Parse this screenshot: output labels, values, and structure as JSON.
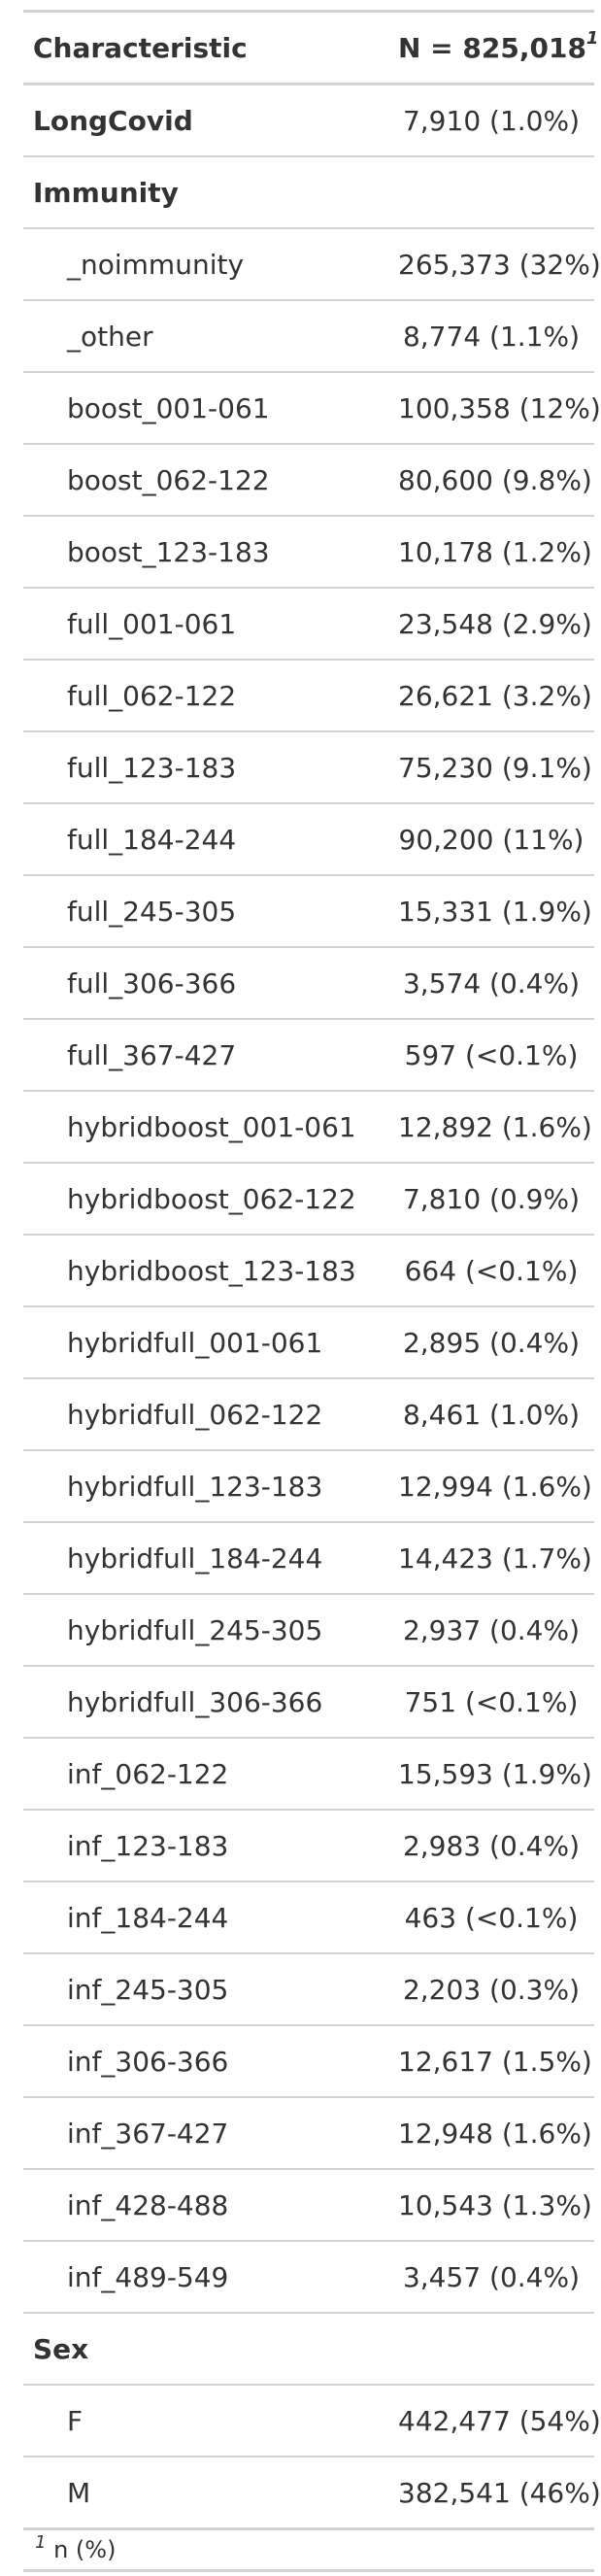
{
  "table": {
    "header": {
      "characteristic": "Characteristic",
      "n_label": "N = 825,018",
      "footnote_mark": "1"
    },
    "rows": [
      {
        "label": "LongCovid",
        "value": "7,910 (1.0%)",
        "type": "var"
      },
      {
        "label": "Immunity",
        "value": "",
        "type": "var"
      },
      {
        "label": "_noimmunity",
        "value": "265,373 (32%)",
        "type": "level"
      },
      {
        "label": "_other",
        "value": "8,774 (1.1%)",
        "type": "level"
      },
      {
        "label": "boost_001-061",
        "value": "100,358 (12%)",
        "type": "level"
      },
      {
        "label": "boost_062-122",
        "value": "80,600 (9.8%)",
        "type": "level"
      },
      {
        "label": "boost_123-183",
        "value": "10,178 (1.2%)",
        "type": "level"
      },
      {
        "label": "full_001-061",
        "value": "23,548 (2.9%)",
        "type": "level"
      },
      {
        "label": "full_062-122",
        "value": "26,621 (3.2%)",
        "type": "level"
      },
      {
        "label": "full_123-183",
        "value": "75,230 (9.1%)",
        "type": "level"
      },
      {
        "label": "full_184-244",
        "value": "90,200 (11%)",
        "type": "level"
      },
      {
        "label": "full_245-305",
        "value": "15,331 (1.9%)",
        "type": "level"
      },
      {
        "label": "full_306-366",
        "value": "3,574 (0.4%)",
        "type": "level"
      },
      {
        "label": "full_367-427",
        "value": "597 (<0.1%)",
        "type": "level"
      },
      {
        "label": "hybridboost_001-061",
        "value": "12,892 (1.6%)",
        "type": "level"
      },
      {
        "label": "hybridboost_062-122",
        "value": "7,810 (0.9%)",
        "type": "level"
      },
      {
        "label": "hybridboost_123-183",
        "value": "664 (<0.1%)",
        "type": "level"
      },
      {
        "label": "hybridfull_001-061",
        "value": "2,895 (0.4%)",
        "type": "level"
      },
      {
        "label": "hybridfull_062-122",
        "value": "8,461 (1.0%)",
        "type": "level"
      },
      {
        "label": "hybridfull_123-183",
        "value": "12,994 (1.6%)",
        "type": "level"
      },
      {
        "label": "hybridfull_184-244",
        "value": "14,423 (1.7%)",
        "type": "level"
      },
      {
        "label": "hybridfull_245-305",
        "value": "2,937 (0.4%)",
        "type": "level"
      },
      {
        "label": "hybridfull_306-366",
        "value": "751 (<0.1%)",
        "type": "level"
      },
      {
        "label": "inf_062-122",
        "value": "15,593 (1.9%)",
        "type": "level"
      },
      {
        "label": "inf_123-183",
        "value": "2,983 (0.4%)",
        "type": "level"
      },
      {
        "label": "inf_184-244",
        "value": "463 (<0.1%)",
        "type": "level"
      },
      {
        "label": "inf_245-305",
        "value": "2,203 (0.3%)",
        "type": "level"
      },
      {
        "label": "inf_306-366",
        "value": "12,617 (1.5%)",
        "type": "level"
      },
      {
        "label": "inf_367-427",
        "value": "12,948 (1.6%)",
        "type": "level"
      },
      {
        "label": "inf_428-488",
        "value": "10,543 (1.3%)",
        "type": "level"
      },
      {
        "label": "inf_489-549",
        "value": "3,457 (0.4%)",
        "type": "level"
      },
      {
        "label": "Sex",
        "value": "",
        "type": "var"
      },
      {
        "label": "F",
        "value": "442,477 (54%)",
        "type": "level"
      },
      {
        "label": "M",
        "value": "382,541 (46%)",
        "type": "level"
      }
    ],
    "footnote": {
      "mark": "1",
      "text": "n (%)"
    }
  }
}
